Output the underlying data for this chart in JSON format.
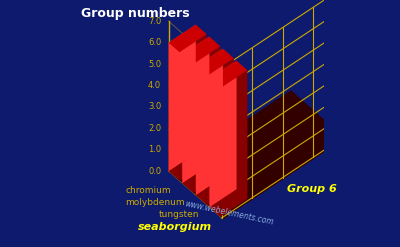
{
  "title": "Group numbers",
  "background_color": "#0d1a6e",
  "bar_color_light": "#ff3333",
  "bar_color_mid": "#cc0000",
  "bar_color_dark": "#880000",
  "grid_color": "#ccaa00",
  "label_color": "#ccaa00",
  "title_color": "#ffffff",
  "elements": [
    "chromium",
    "molybdenum",
    "tungsten",
    "seaborgium"
  ],
  "values": [
    6,
    6,
    6,
    6
  ],
  "y_max": 7.0,
  "yticks": [
    0.0,
    1.0,
    2.0,
    3.0,
    4.0,
    5.0,
    6.0,
    7.0
  ],
  "xlabel": "Group 6",
  "watermark": "www.webelements.com",
  "watermark_color": "#88aadd",
  "seaborgium_color": "#ffff00",
  "group6_color": "#ffff00"
}
